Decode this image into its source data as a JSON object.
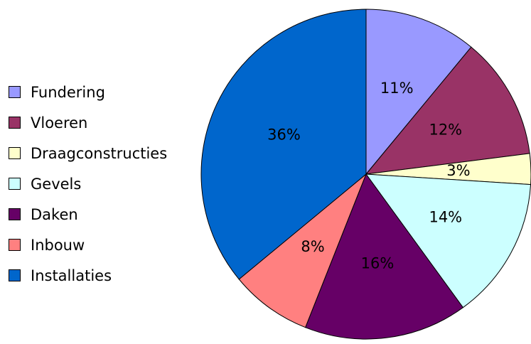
{
  "chart_data": {
    "type": "pie",
    "slices": [
      {
        "label": "Fundering",
        "value": 11,
        "display": "11%",
        "color": "#9999FF"
      },
      {
        "label": "Vloeren",
        "value": 12,
        "display": "12%",
        "color": "#993366"
      },
      {
        "label": "Draagconstructies",
        "value": 3,
        "display": "3%",
        "color": "#FFFFCC"
      },
      {
        "label": "Gevels",
        "value": 14,
        "display": "14%",
        "color": "#CCFFFF"
      },
      {
        "label": "Daken",
        "value": 16,
        "display": "16%",
        "color": "#660066"
      },
      {
        "label": "Inbouw",
        "value": 8,
        "display": "8%",
        "color": "#FF8080"
      },
      {
        "label": "Installaties",
        "value": 36,
        "display": "36%",
        "color": "#0066CC"
      }
    ],
    "legend_position": "left",
    "start_angle": "12 o'clock",
    "direction": "clockwise"
  }
}
